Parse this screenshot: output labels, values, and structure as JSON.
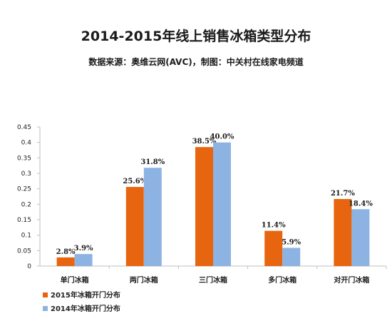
{
  "title": "2014-2015年线上销售冰箱类型分布",
  "subtitle": "数据来源：奥维云网(AVC)，制图：中关村在线家电频道",
  "chart_data": {
    "type": "bar",
    "categories": [
      "单门冰箱",
      "两门冰箱",
      "三门冰箱",
      "多门冰箱",
      "对开门冰箱"
    ],
    "series": [
      {
        "name": "2015年冰箱开门分布",
        "color": "#E8650F",
        "values": [
          0.028,
          0.256,
          0.385,
          0.114,
          0.217
        ],
        "labels": [
          "2.8%",
          "25.6%",
          "38.5%",
          "11.4%",
          "21.7%"
        ]
      },
      {
        "name": "2014年冰箱开门分布",
        "color": "#8DB3E2",
        "values": [
          0.039,
          0.318,
          0.4,
          0.059,
          0.184
        ],
        "labels": [
          "3.9%",
          "31.8%",
          "40.0%",
          "5.9%",
          "18.4%"
        ]
      }
    ],
    "yticks": [
      "0",
      "0.05",
      "0.1",
      "0.15",
      "0.2",
      "0.25",
      "0.3",
      "0.35",
      "0.4",
      "0.45"
    ],
    "ylim": [
      0,
      0.45
    ],
    "grid": false,
    "legend_position": "bottom-left"
  }
}
